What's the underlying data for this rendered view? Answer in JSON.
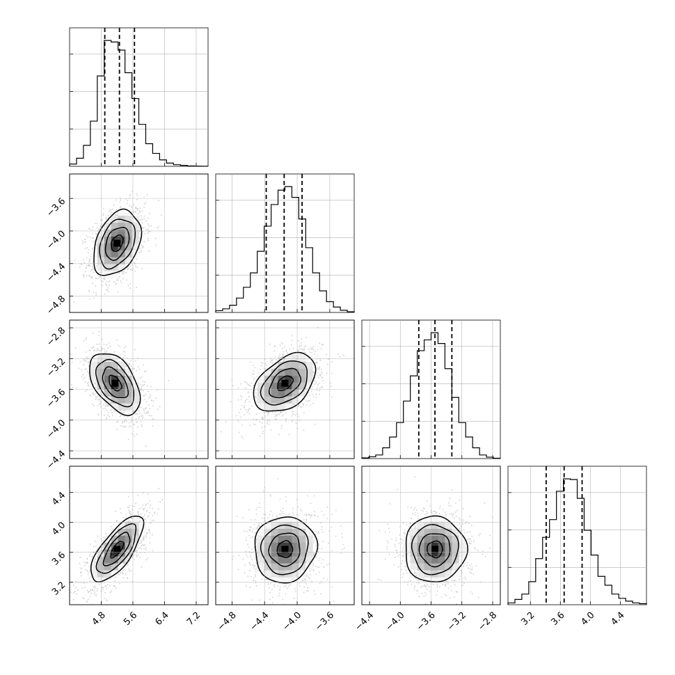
{
  "chart_data": {
    "type": "corner",
    "grid": true,
    "tick_labels": {
      "p0": [
        "4.8",
        "5.6",
        "6.4",
        "7.2"
      ],
      "p1": [
        "−4.8",
        "−4.4",
        "−4.0",
        "−3.6"
      ],
      "p2": [
        "−4.4",
        "−4.0",
        "−3.6",
        "−3.2",
        "−2.8"
      ],
      "p3": [
        "3.2",
        "3.6",
        "4.0",
        "4.4"
      ]
    },
    "parameters": [
      {
        "range": [
          4.0,
          7.5
        ],
        "ticks": [
          4.8,
          5.6,
          6.4,
          7.2
        ],
        "quantiles": [
          4.89,
          5.26,
          5.64
        ],
        "hist": [
          0.7,
          2.5,
          6.5,
          14,
          28,
          39,
          38.5,
          36,
          29,
          21,
          13,
          7,
          4,
          2,
          1,
          0.5,
          0.3,
          0.1,
          0.05,
          0.02
        ]
      },
      {
        "range": [
          -5.0,
          -3.3
        ],
        "ticks": [
          -4.8,
          -4.4,
          -4.0,
          -3.6
        ],
        "quantiles": [
          -4.38,
          -4.16,
          -3.94
        ],
        "hist": [
          0.5,
          1,
          2,
          4,
          7,
          11,
          17,
          24,
          30,
          34,
          35,
          32,
          26,
          18,
          11,
          6,
          3,
          1.5,
          0.6,
          0.2
        ]
      },
      {
        "range": [
          -4.5,
          -2.7
        ],
        "ticks": [
          -4.4,
          -4.0,
          -3.6,
          -3.2,
          -2.8
        ],
        "quantiles": [
          -3.76,
          -3.55,
          -3.33
        ],
        "hist": [
          0.2,
          0.5,
          1,
          3,
          6,
          10,
          16,
          23,
          30,
          33,
          35,
          32,
          25,
          17,
          10,
          6,
          3,
          1,
          0.4,
          0.1
        ]
      },
      {
        "range": [
          2.9,
          4.75
        ],
        "ticks": [
          3.2,
          3.6,
          4.0,
          4.4
        ],
        "quantiles": [
          3.41,
          3.65,
          3.89
        ],
        "hist": [
          0.5,
          1.5,
          3,
          6.5,
          13,
          19,
          24,
          32,
          35.5,
          35.3,
          30,
          21,
          14,
          8,
          5.5,
          3,
          1.8,
          1,
          0.5,
          0.3
        ]
      }
    ],
    "pairs": [
      {
        "row": 1,
        "col": 0,
        "mean": [
          5.2,
          -4.15
        ],
        "std": [
          0.3,
          0.2
        ],
        "rho": 0.35
      },
      {
        "row": 2,
        "col": 0,
        "mean": [
          5.15,
          -3.52
        ],
        "std": [
          0.32,
          0.2
        ],
        "rho": -0.48
      },
      {
        "row": 2,
        "col": 1,
        "mean": [
          -4.15,
          -3.52
        ],
        "std": [
          0.19,
          0.19
        ],
        "rho": 0.42
      },
      {
        "row": 3,
        "col": 0,
        "mean": [
          5.2,
          3.64
        ],
        "std": [
          0.33,
          0.22
        ],
        "rho": 0.72
      },
      {
        "row": 3,
        "col": 1,
        "mean": [
          -4.15,
          3.64
        ],
        "std": [
          0.19,
          0.22
        ],
        "rho": 0.05
      },
      {
        "row": 3,
        "col": 2,
        "mean": [
          -3.55,
          3.64
        ],
        "std": [
          0.2,
          0.22
        ],
        "rho": 0.0
      }
    ],
    "contour_levels_sigma": [
      0.5,
      1.0,
      1.5,
      2.0
    ]
  }
}
